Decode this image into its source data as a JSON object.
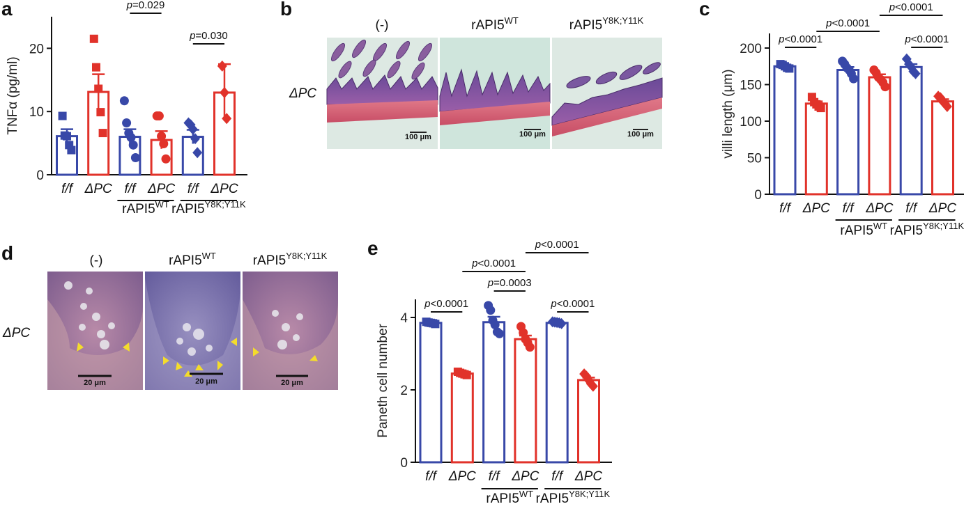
{
  "panels": {
    "a": "a",
    "b": "b",
    "c": "c",
    "d": "d",
    "e": "e"
  },
  "colors": {
    "blue": "#3848a8",
    "red": "#e1322a"
  },
  "categories": [
    "f/f",
    "ΔPC",
    "f/f",
    "ΔPC",
    "f/f",
    "ΔPC"
  ],
  "groups": {
    "wt_base": "rAPI5",
    "wt_sup": "WT",
    "mut_base": "rAPI5",
    "mut_sup": "Y8K;Y11K"
  },
  "images": {
    "headers": [
      "(-)",
      "rAPI5",
      "rAPI5"
    ],
    "header_sups": [
      "",
      "WT",
      "Y8K;Y11K"
    ],
    "row_label": "ΔPC",
    "scale_b": "100 μm",
    "scale_d": "20 μm"
  },
  "chart_data": [
    {
      "id": "a",
      "type": "bar",
      "ylabel": "TNFα (pg/ml)",
      "ylim": [
        0,
        25
      ],
      "yticks": [
        0,
        10,
        20
      ],
      "categories": [
        "f/f",
        "ΔPC",
        "f/f",
        "ΔPC",
        "f/f",
        "ΔPC"
      ],
      "colors": [
        "blue",
        "red",
        "blue",
        "red",
        "blue",
        "red"
      ],
      "markers": [
        "square",
        "square",
        "circle",
        "circle",
        "diamond",
        "diamond"
      ],
      "values": [
        6.1,
        13.1,
        6.0,
        5.5,
        6.0,
        13.0
      ],
      "errors": [
        1.1,
        2.8,
        1.2,
        1.4,
        1.1,
        4.5
      ],
      "points": [
        [
          9.3,
          6.2,
          6.1,
          4.7,
          3.9
        ],
        [
          21.5,
          17.0,
          13.6,
          9.9,
          6.6
        ],
        [
          11.7,
          8.2,
          6.6,
          5.9,
          4.7,
          2.7
        ],
        [
          9.3,
          9.3,
          6.1,
          4.9,
          2.5
        ],
        [
          8.2,
          7.9,
          7.2,
          5.7,
          3.5
        ],
        [
          17.2,
          13.0,
          8.9
        ]
      ],
      "brackets": [
        {
          "from": 2,
          "to": 3,
          "text_p": "p",
          "text_v": "=0.029",
          "level": 2
        },
        {
          "from": 4,
          "to": 5,
          "text_p": "p",
          "text_v": "=0.030",
          "level": 1
        }
      ]
    },
    {
      "id": "c",
      "type": "bar",
      "ylabel": "villi length (μm)",
      "ylim": [
        0,
        220
      ],
      "yticks": [
        0,
        50,
        100,
        150,
        200
      ],
      "categories": [
        "f/f",
        "ΔPC",
        "f/f",
        "ΔPC",
        "f/f",
        "ΔPC"
      ],
      "colors": [
        "blue",
        "red",
        "blue",
        "red",
        "blue",
        "red"
      ],
      "markers": [
        "square",
        "square",
        "circle",
        "circle",
        "diamond",
        "diamond"
      ],
      "values": [
        175,
        124,
        170,
        160,
        174,
        127
      ],
      "errors": [
        2,
        3,
        4,
        4,
        4,
        3
      ],
      "points": [
        [
          178,
          177,
          175,
          173,
          172
        ],
        [
          133,
          126,
          123,
          120,
          118
        ],
        [
          182,
          178,
          173,
          170,
          165,
          158
        ],
        [
          170,
          166,
          160,
          157,
          153,
          147
        ],
        [
          185,
          178,
          174,
          168,
          165
        ],
        [
          134,
          132,
          127,
          124,
          120
        ]
      ],
      "brackets": [
        {
          "from": 0,
          "to": 1,
          "text_p": "p",
          "text_v": "<0.0001",
          "level": 1
        },
        {
          "from": 1,
          "to": 3,
          "text_p": "p",
          "text_v": "<0.0001",
          "level": 2
        },
        {
          "from": 3,
          "to": 5,
          "text_p": "p",
          "text_v": "<0.0001",
          "level": 3
        },
        {
          "from": 4,
          "to": 5,
          "text_p": "p",
          "text_v": "<0.0001",
          "level": 1
        }
      ]
    },
    {
      "id": "e",
      "type": "bar",
      "ylabel": "Paneth cell number",
      "ylim": [
        0,
        4.5
      ],
      "yticks": [
        0,
        2,
        4
      ],
      "categories": [
        "f/f",
        "ΔPC",
        "f/f",
        "ΔPC",
        "f/f",
        "ΔPC"
      ],
      "colors": [
        "blue",
        "red",
        "blue",
        "red",
        "blue",
        "red"
      ],
      "markers": [
        "square",
        "square",
        "circle",
        "circle",
        "diamond",
        "diamond"
      ],
      "values": [
        3.85,
        2.45,
        3.87,
        3.4,
        3.85,
        2.27
      ],
      "errors": [
        0.03,
        0.04,
        0.15,
        0.1,
        0.02,
        0.07
      ],
      "points": [
        [
          3.88,
          3.86,
          3.85,
          3.84,
          3.82
        ],
        [
          2.5,
          2.47,
          2.45,
          2.43,
          2.41
        ],
        [
          4.33,
          4.2,
          3.92,
          3.8,
          3.6,
          3.55
        ],
        [
          3.75,
          3.58,
          3.4,
          3.3,
          3.18
        ],
        [
          3.88,
          3.87,
          3.86,
          3.85,
          3.83
        ],
        [
          2.44,
          2.38,
          2.27,
          2.17,
          2.1
        ]
      ],
      "brackets": [
        {
          "from": 0,
          "to": 1,
          "text_p": "p",
          "text_v": "<0.0001",
          "level": 1
        },
        {
          "from": 2,
          "to": 3,
          "text_p": "p",
          "text_v": "=0.0003",
          "level": 2
        },
        {
          "from": 1,
          "to": 3,
          "text_p": "p",
          "text_v": "<0.0001",
          "level": 3
        },
        {
          "from": 3,
          "to": 5,
          "text_p": "p",
          "text_v": "<0.0001",
          "level": 4
        },
        {
          "from": 4,
          "to": 5,
          "text_p": "p",
          "text_v": "<0.0001",
          "level": 1
        }
      ]
    }
  ]
}
